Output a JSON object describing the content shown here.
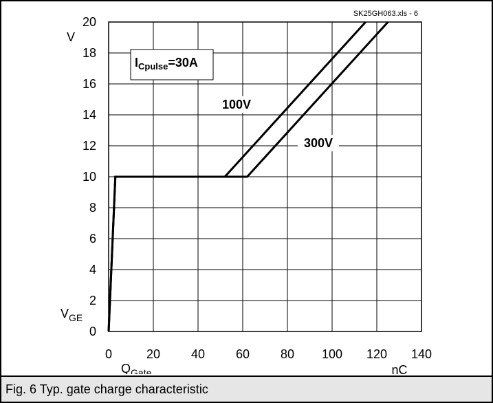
{
  "source_label": "SK25GH063.xls - 6",
  "caption": "Fig. 6 Typ. gate charge characteristic",
  "annotation": {
    "base": "I",
    "sub": "Cpulse",
    "rest": "=30A"
  },
  "chart_data": {
    "type": "line",
    "title": "",
    "xlabel": {
      "base": "Q",
      "sub": "Gate"
    },
    "ylabel": {
      "base": "V",
      "sub": "GE"
    },
    "x_unit": "nC",
    "y_unit": "V",
    "xlim": [
      0,
      140
    ],
    "ylim": [
      0,
      20
    ],
    "xticks": [
      0,
      20,
      40,
      60,
      80,
      100,
      120,
      140
    ],
    "yticks": [
      0,
      2,
      4,
      6,
      8,
      10,
      12,
      14,
      16,
      18,
      20
    ],
    "grid": true,
    "series": [
      {
        "name": "100V",
        "points": [
          [
            0,
            0
          ],
          [
            3,
            10
          ],
          [
            52,
            10
          ],
          [
            115,
            20
          ]
        ]
      },
      {
        "name": "300V",
        "points": [
          [
            0,
            0
          ],
          [
            3,
            10
          ],
          [
            62,
            10
          ],
          [
            125,
            20
          ]
        ]
      }
    ]
  }
}
